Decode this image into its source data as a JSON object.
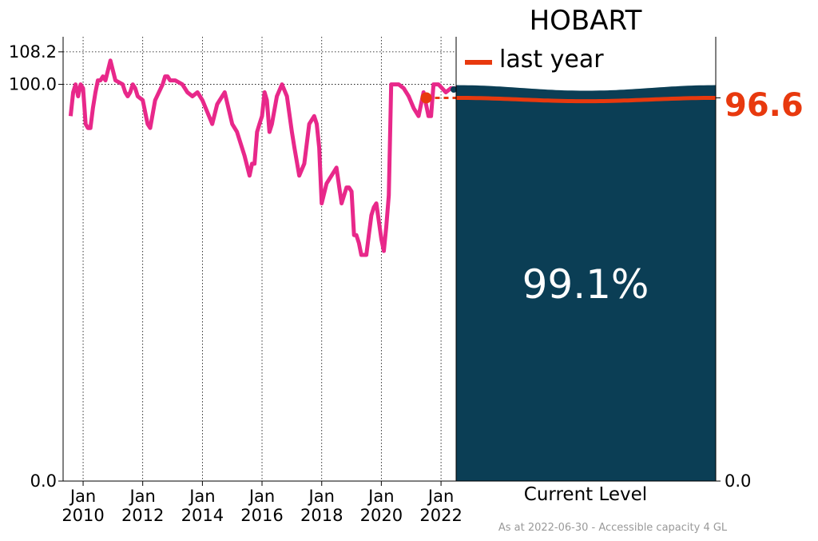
{
  "chart_data": {
    "type": "line",
    "title": "HOBART",
    "legend_label": "last year",
    "legend_placement": "top-left of level panel",
    "ylim": [
      0,
      112
    ],
    "yticks": [
      "0.0",
      "100.0",
      "108.2"
    ],
    "right_ticks": [
      "96.6",
      "0.0"
    ],
    "xlim": [
      "2009-05-01",
      "2022-07-05"
    ],
    "xticks": [
      {
        "date": "2010-01-01",
        "label": [
          "Jan",
          "2010"
        ]
      },
      {
        "date": "2012-01-01",
        "label": [
          "Jan",
          "2012"
        ]
      },
      {
        "date": "2014-01-01",
        "label": [
          "Jan",
          "2014"
        ]
      },
      {
        "date": "2016-01-01",
        "label": [
          "Jan",
          "2016"
        ]
      },
      {
        "date": "2018-01-01",
        "label": [
          "Jan",
          "2018"
        ]
      },
      {
        "date": "2020-01-01",
        "label": [
          "Jan",
          "2020"
        ]
      },
      {
        "date": "2022-01-01",
        "label": [
          "Jan",
          "2022"
        ]
      }
    ],
    "grid": "dotted, at x ticks and at 100.0 / 108.2",
    "series": [
      {
        "color": "#e8288a",
        "x": [
          "2009-08-01",
          "2009-09-01",
          "2009-10-01",
          "2009-11-01",
          "2009-12-01",
          "2010-01-01",
          "2010-02-01",
          "2010-03-01",
          "2010-04-01",
          "2010-05-01",
          "2010-06-01",
          "2010-07-01",
          "2010-08-01",
          "2010-09-01",
          "2010-10-01",
          "2010-12-01",
          "2011-02-01",
          "2011-05-01",
          "2011-06-01",
          "2011-07-01",
          "2011-08-01",
          "2011-09-01",
          "2011-10-01",
          "2011-11-01",
          "2012-01-01",
          "2012-03-01",
          "2012-04-01",
          "2012-06-01",
          "2012-09-01",
          "2012-10-01",
          "2012-11-01",
          "2012-12-01",
          "2013-02-01",
          "2013-05-01",
          "2013-07-01",
          "2013-09-01",
          "2013-11-01",
          "2014-01-01",
          "2014-05-01",
          "2014-07-01",
          "2014-10-01",
          "2015-01-01",
          "2015-03-01",
          "2015-06-01",
          "2015-08-01",
          "2015-09-01",
          "2015-10-01",
          "2015-11-01",
          "2015-12-01",
          "2016-01-01",
          "2016-02-01",
          "2016-03-01",
          "2016-04-01",
          "2016-05-01",
          "2016-07-01",
          "2016-09-01",
          "2016-11-01",
          "2017-01-01",
          "2017-02-01",
          "2017-04-01",
          "2017-06-01",
          "2017-08-01",
          "2017-10-01",
          "2017-11-01",
          "2017-12-01",
          "2018-01-01",
          "2018-03-01",
          "2018-05-01",
          "2018-07-01",
          "2018-09-01",
          "2018-11-01",
          "2018-12-01",
          "2019-01-01",
          "2019-02-01",
          "2019-03-01",
          "2019-04-01",
          "2019-05-01",
          "2019-06-01",
          "2019-07-01",
          "2019-08-01",
          "2019-09-01",
          "2019-10-01",
          "2019-11-01",
          "2020-01-01",
          "2020-02-01",
          "2020-03-01",
          "2020-04-01",
          "2020-05-01",
          "2020-06-01",
          "2020-08-01",
          "2020-10-01",
          "2020-12-01",
          "2021-02-01",
          "2021-04-01",
          "2021-06-01",
          "2021-08-01",
          "2021-09-01",
          "2021-10-01",
          "2021-12-01",
          "2022-03-01",
          "2022-05-01",
          "2022-06-30"
        ],
        "y": [
          92,
          98,
          100,
          97,
          100,
          99,
          90,
          89,
          89,
          94,
          98,
          101,
          101,
          102,
          101,
          106,
          101,
          100,
          98,
          97,
          98,
          100,
          99,
          97,
          96,
          90,
          89,
          96,
          100,
          102,
          102,
          101,
          101,
          100,
          98,
          97,
          98,
          96,
          90,
          95,
          98,
          90,
          88,
          82,
          77,
          80,
          80,
          88,
          90,
          92,
          98,
          96,
          88,
          90,
          97,
          100,
          97,
          88,
          84,
          77,
          80,
          90,
          92,
          90,
          84,
          70,
          75,
          77,
          79,
          70,
          74,
          74,
          73,
          62,
          62,
          60,
          57,
          57,
          57,
          62,
          67,
          69,
          70,
          61,
          58,
          64,
          72,
          100,
          100,
          100,
          99,
          97,
          94,
          92,
          98,
          92,
          92,
          100,
          100,
          98,
          99,
          99
        ]
      }
    ],
    "last_year": {
      "value": 96.6,
      "label": "96.6",
      "color": "#e8390e"
    },
    "current_level": {
      "value": 99.1,
      "label": "99.1%",
      "caption": "Current Level",
      "color": "#0b3e55"
    },
    "footnote": "As at 2022-06-30 - Accessible capacity 4 GL"
  }
}
